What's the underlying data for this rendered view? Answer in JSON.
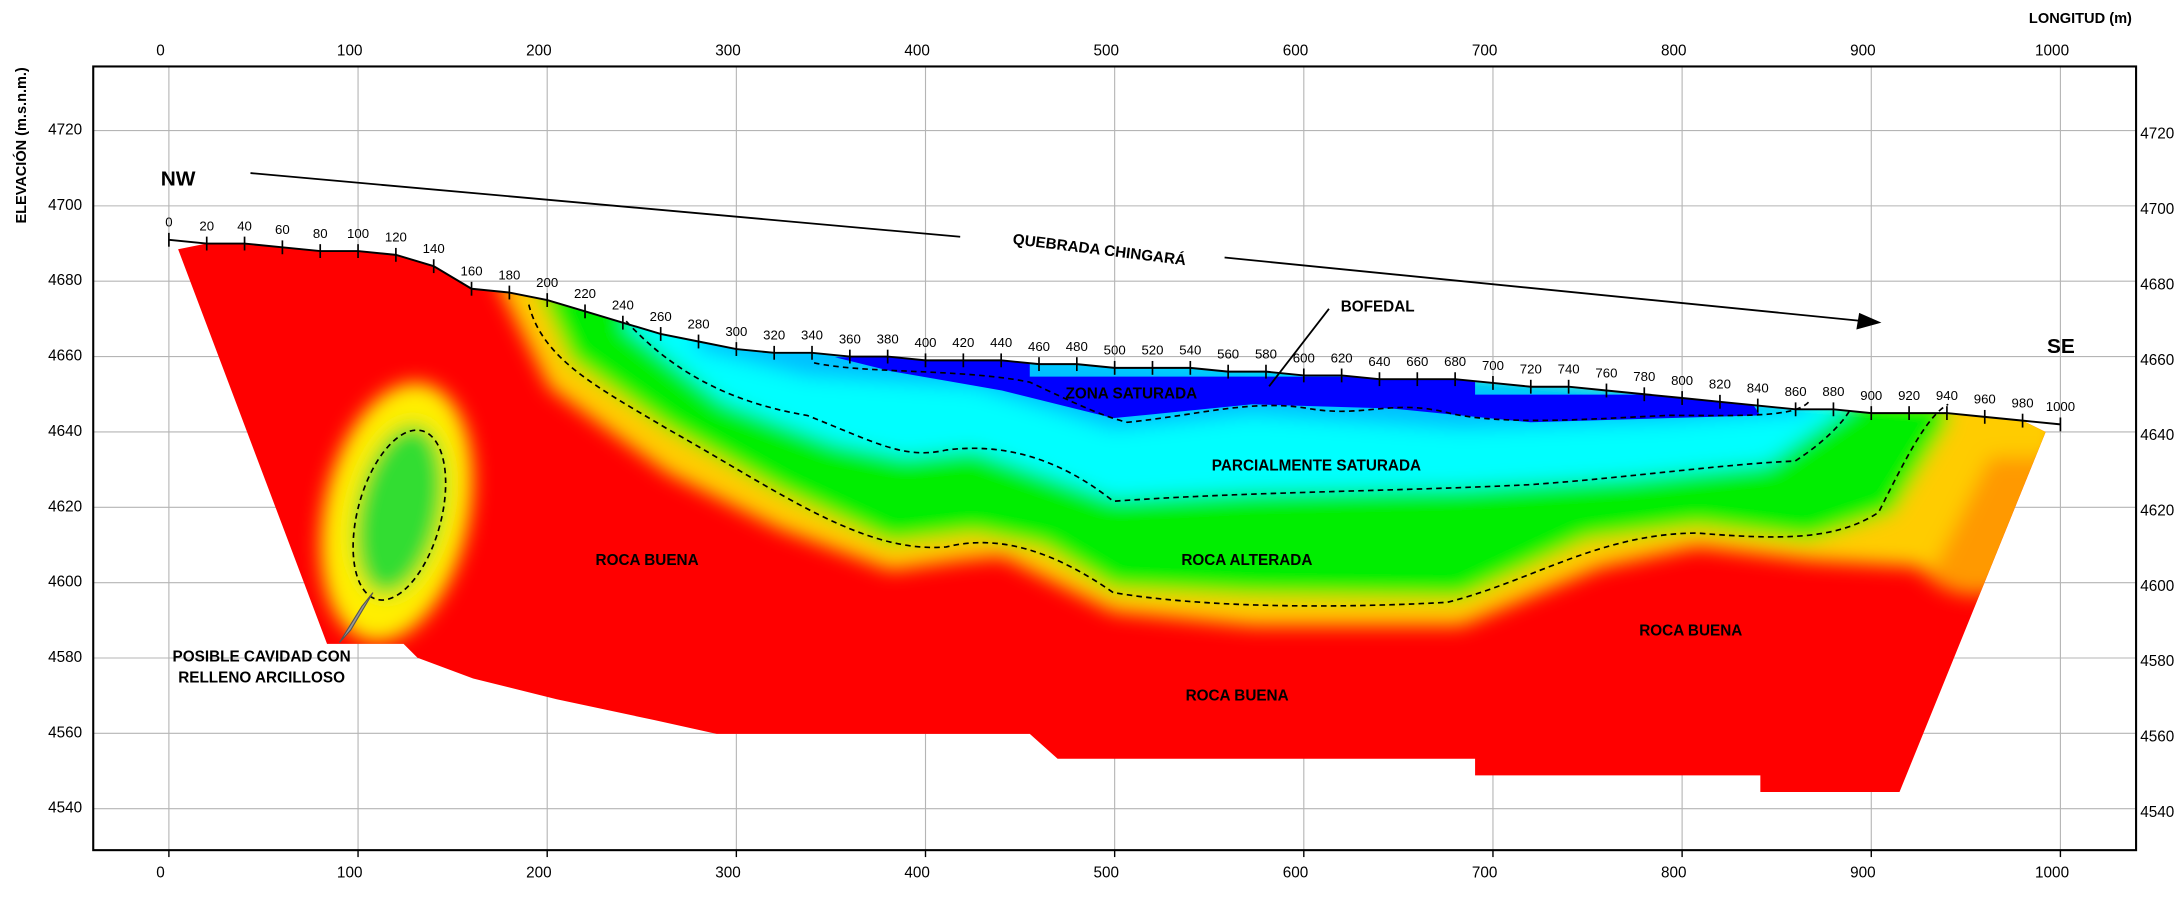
{
  "chart_data": {
    "type": "section",
    "x_label": "LONGITUD (m)",
    "y_label": "ELEVACIÓN (m.s.n.m.)",
    "xlim": [
      -40,
      1040
    ],
    "ylim": [
      4529,
      4737
    ],
    "xticks": [
      0,
      100,
      200,
      300,
      400,
      500,
      600,
      700,
      800,
      900,
      1000
    ],
    "yticks": [
      4540,
      4560,
      4580,
      4600,
      4620,
      4640,
      4660,
      4680,
      4700,
      4720
    ],
    "grid": true,
    "color": "#000000",
    "x": [
      0,
      20,
      40,
      60,
      80,
      100,
      120,
      140,
      160,
      180,
      200,
      220,
      240,
      260,
      280,
      300,
      320,
      340,
      360,
      380,
      400,
      420,
      440,
      460,
      480,
      500,
      520,
      540,
      560,
      580,
      600,
      620,
      640,
      660,
      680,
      700,
      720,
      740,
      760,
      780,
      800,
      820,
      840,
      860,
      880,
      900,
      920,
      940,
      960,
      980,
      1000
    ],
    "values": [
      4691,
      4690,
      4690,
      4689,
      4688,
      4688,
      4687,
      4684,
      4678,
      4677,
      4675,
      4672,
      4669,
      4666,
      4664,
      4662,
      4661,
      4661,
      4660,
      4660,
      4659,
      4659,
      4659,
      4658,
      4658,
      4657,
      4657,
      4657,
      4656,
      4656,
      4655,
      4655,
      4654,
      4654,
      4654,
      4653,
      4652,
      4652,
      4651,
      4650,
      4649,
      4648,
      4647,
      4646,
      4646,
      4645,
      4645,
      4645,
      4644,
      4643,
      4642
    ],
    "annotations": [
      {
        "text": "NW"
      },
      {
        "text": "SE"
      },
      {
        "text": "QUEBRADA CHINGARÁ"
      },
      {
        "text": "BOFEDAL"
      },
      {
        "text": "ZONA SATURADA"
      },
      {
        "text": "PARCIALMENTE SATURADA"
      },
      {
        "text": "ROCA ALTERADA"
      },
      {
        "text": "ROCA BUENA"
      },
      {
        "text": "ROCA BUENA"
      },
      {
        "text": "ROCA BUENA"
      },
      {
        "text": "POSIBLE CAVIDAD CON"
      },
      {
        "text": "RELLENO ARCILLOSO"
      }
    ]
  }
}
